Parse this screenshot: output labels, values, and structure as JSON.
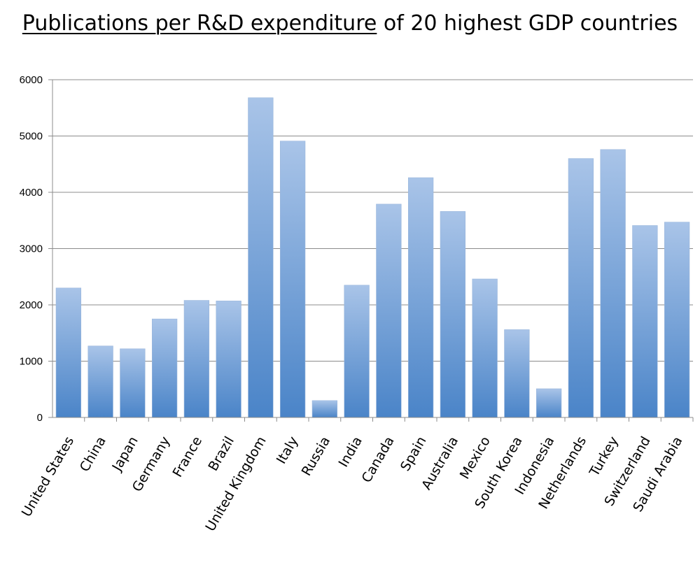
{
  "chart_data": {
    "type": "bar",
    "title": {
      "underlined_part": "Publications per R&D expenditure",
      "rest": " of 20 highest GDP countries"
    },
    "xlabel": "",
    "ylabel": "",
    "categories": [
      "United States",
      "China",
      "Japan",
      "Germany",
      "France",
      "Brazil",
      "United Kingdom",
      "Italy",
      "Russia",
      "India",
      "Canada",
      "Spain",
      "Australia",
      "Mexico",
      "South Korea",
      "Indonesia",
      "Netherlands",
      "Turkey",
      "Switzerland",
      "Saudi Arabia"
    ],
    "values": [
      2300,
      1270,
      1220,
      1750,
      2080,
      2070,
      5680,
      4910,
      300,
      2350,
      3790,
      4260,
      3660,
      2460,
      1560,
      510,
      4600,
      4760,
      3410,
      3470
    ],
    "ylim": [
      0,
      6000
    ],
    "yticks": [
      "0",
      "1000",
      "2000",
      "3000",
      "4000",
      "5000",
      "6000"
    ],
    "grid": true,
    "legend": "none",
    "bar_color_top": "#a9c4e8",
    "bar_color_bottom": "#4a84c8"
  }
}
